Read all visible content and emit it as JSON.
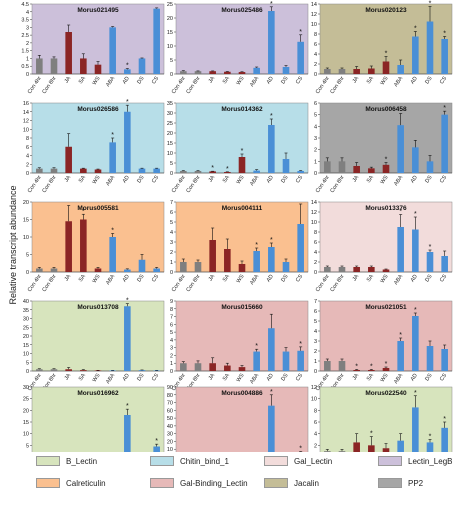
{
  "y_axis_label": "Relative transcript abundance",
  "x_categories": [
    "Con 4hr",
    "Con 8hr",
    "JA",
    "SA",
    "WS",
    "ABA",
    "AD",
    "DS",
    "CS"
  ],
  "bar_colors": [
    "#7f7f7f",
    "#7f7f7f",
    "#8b2525",
    "#8b2525",
    "#8b2525",
    "#4a8fd6",
    "#4a8fd6",
    "#4a8fd6",
    "#4a8fd6"
  ],
  "legend": [
    {
      "label": "B_Lectin",
      "color": "#d7e4bd"
    },
    {
      "label": "Chitin_bind_1",
      "color": "#b7dee8"
    },
    {
      "label": "Gal_Lectin",
      "color": "#f2dcdb"
    },
    {
      "label": "Lectin_LegB",
      "color": "#ccc0da"
    },
    {
      "label": "Calreticulin",
      "color": "#fac090"
    },
    {
      "label": "Gal-Binding_Lectin",
      "color": "#e6b9b8"
    },
    {
      "label": "Jacalin",
      "color": "#c4bd97"
    },
    {
      "label": "PP2",
      "color": "#a6a6a6"
    }
  ],
  "chart_data": [
    {
      "type": "bar",
      "title": "Morus021495",
      "bg": "#ccc0da",
      "ylim": [
        0,
        4.5
      ],
      "yticks": [
        0,
        0.5,
        1,
        1.5,
        2,
        2.5,
        3,
        3.5,
        4,
        4.5
      ],
      "values": [
        1.0,
        1.0,
        2.7,
        1.0,
        0.6,
        3.0,
        0.3,
        1.0,
        4.2
      ],
      "errors": [
        0.2,
        0.1,
        0.45,
        0.3,
        0.2,
        0.05,
        0.05,
        0.03,
        0.05
      ],
      "star": [
        false,
        false,
        false,
        false,
        false,
        false,
        true,
        false,
        false
      ]
    },
    {
      "type": "bar",
      "title": "Morus025486",
      "bg": "#ccc0da",
      "ylim": [
        0,
        25
      ],
      "yticks": [
        0,
        5,
        10,
        15,
        20,
        25
      ],
      "values": [
        1.0,
        1.0,
        1.0,
        0.8,
        0.7,
        2.2,
        22.5,
        2.5,
        11.5
      ],
      "errors": [
        0.2,
        0.1,
        0.1,
        0.1,
        0.1,
        0.3,
        1.5,
        0.5,
        2.5
      ],
      "star": [
        false,
        false,
        false,
        false,
        false,
        false,
        true,
        false,
        true
      ]
    },
    {
      "type": "bar",
      "title": "Morus020123",
      "bg": "#c4bd97",
      "ylim": [
        0,
        14
      ],
      "yticks": [
        0,
        2,
        4,
        6,
        8,
        10,
        12,
        14
      ],
      "values": [
        1.0,
        1.0,
        1.0,
        1.1,
        2.5,
        1.8,
        7.5,
        10.5,
        7.0
      ],
      "errors": [
        0.2,
        0.2,
        0.5,
        0.5,
        1.0,
        1.0,
        1.0,
        3.0,
        0.5
      ],
      "star": [
        false,
        false,
        false,
        false,
        true,
        false,
        true,
        true,
        true
      ]
    },
    {
      "type": "bar",
      "title": "Morus026586",
      "bg": "#b7dee8",
      "ylim": [
        0,
        16
      ],
      "yticks": [
        0,
        2,
        4,
        6,
        8,
        10,
        12,
        14,
        16
      ],
      "values": [
        1.0,
        1.0,
        6.0,
        1.0,
        0.8,
        7.0,
        14.0,
        1.0,
        1.0
      ],
      "errors": [
        0.2,
        0.2,
        3.0,
        0.1,
        0.1,
        1.0,
        1.5,
        0.1,
        0.1
      ],
      "star": [
        false,
        false,
        false,
        false,
        false,
        true,
        true,
        false,
        false
      ]
    },
    {
      "type": "bar",
      "title": "Morus014362",
      "bg": "#b7dee8",
      "ylim": [
        0,
        35
      ],
      "yticks": [
        0,
        5,
        10,
        15,
        20,
        25,
        30,
        35
      ],
      "values": [
        1.0,
        1.0,
        0.8,
        0.5,
        8.0,
        1.2,
        24.0,
        7.0,
        1.0
      ],
      "errors": [
        0.2,
        0.2,
        0.1,
        0.1,
        1.5,
        0.5,
        3.0,
        3.0,
        0.2
      ],
      "star": [
        false,
        false,
        true,
        true,
        true,
        false,
        true,
        false,
        false
      ]
    },
    {
      "type": "bar",
      "title": "Morus006458",
      "bg": "#a6a6a6",
      "ylim": [
        0,
        6
      ],
      "yticks": [
        0,
        1,
        2,
        3,
        4,
        5,
        6
      ],
      "values": [
        1.0,
        1.0,
        0.6,
        0.4,
        0.7,
        4.1,
        2.2,
        1.0,
        5.0
      ],
      "errors": [
        0.3,
        0.3,
        0.3,
        0.1,
        0.2,
        1.0,
        0.6,
        0.5,
        0.3
      ],
      "star": [
        false,
        false,
        false,
        false,
        true,
        false,
        false,
        false,
        true
      ]
    },
    {
      "type": "bar",
      "title": "Morus005581",
      "bg": "#fac090",
      "ylim": [
        0,
        20
      ],
      "yticks": [
        0,
        5,
        10,
        15,
        20
      ],
      "values": [
        1.0,
        1.0,
        14.5,
        15.0,
        1.0,
        10.0,
        0.7,
        3.5,
        1.0
      ],
      "errors": [
        0.3,
        0.3,
        4.5,
        1.5,
        0.3,
        1.0,
        0.2,
        1.5,
        0.3
      ],
      "star": [
        false,
        false,
        false,
        true,
        false,
        true,
        false,
        false,
        false
      ]
    },
    {
      "type": "bar",
      "title": "Morus004111",
      "bg": "#fac090",
      "ylim": [
        0,
        7
      ],
      "yticks": [
        0,
        1,
        2,
        3,
        4,
        5,
        6,
        7
      ],
      "values": [
        1.0,
        1.0,
        3.2,
        2.3,
        0.8,
        2.1,
        2.5,
        1.0,
        4.8
      ],
      "errors": [
        0.3,
        0.2,
        1.2,
        1.0,
        0.3,
        0.3,
        0.4,
        0.3,
        2.0
      ],
      "star": [
        false,
        false,
        false,
        false,
        false,
        true,
        true,
        false,
        false
      ]
    },
    {
      "type": "bar",
      "title": "Morus013376",
      "bg": "#f2dcdb",
      "ylim": [
        0,
        14
      ],
      "yticks": [
        0,
        2,
        4,
        6,
        8,
        10,
        12,
        14
      ],
      "values": [
        1.0,
        1.0,
        1.0,
        1.0,
        0.5,
        9.0,
        8.5,
        4.0,
        3.2
      ],
      "errors": [
        0.2,
        0.2,
        0.2,
        0.2,
        0.1,
        2.5,
        2.5,
        0.4,
        1.0
      ],
      "star": [
        false,
        false,
        false,
        false,
        false,
        true,
        true,
        true,
        false
      ]
    },
    {
      "type": "bar",
      "title": "Morus013708",
      "bg": "#d7e4bd",
      "ylim": [
        0,
        40
      ],
      "yticks": [
        0,
        5,
        10,
        15,
        20,
        25,
        30,
        35,
        40
      ],
      "values": [
        1.0,
        1.0,
        1.0,
        0.5,
        0.3,
        0.3,
        37.0,
        0.5,
        0.3
      ],
      "errors": [
        0.3,
        0.3,
        1.0,
        0.3,
        0.1,
        0.1,
        1.5,
        0.1,
        0.1
      ],
      "star": [
        false,
        false,
        false,
        false,
        false,
        false,
        true,
        false,
        false
      ]
    },
    {
      "type": "bar",
      "title": "Morus015660",
      "bg": "#e6b9b8",
      "ylim": [
        0,
        9
      ],
      "yticks": [
        0,
        1,
        2,
        3,
        4,
        5,
        6,
        7,
        8,
        9
      ],
      "values": [
        1.0,
        1.0,
        1.0,
        0.7,
        0.5,
        2.5,
        5.5,
        2.5,
        2.6
      ],
      "errors": [
        0.2,
        0.3,
        0.7,
        0.3,
        0.2,
        0.3,
        1.8,
        0.5,
        0.5
      ],
      "star": [
        false,
        false,
        false,
        false,
        false,
        true,
        false,
        false,
        true
      ]
    },
    {
      "type": "bar",
      "title": "Morus021051",
      "bg": "#e6b9b8",
      "ylim": [
        0,
        7
      ],
      "yticks": [
        0,
        1,
        2,
        3,
        4,
        5,
        6,
        7
      ],
      "values": [
        1.0,
        1.0,
        0.1,
        0.1,
        0.3,
        3.0,
        5.5,
        2.5,
        2.2
      ],
      "errors": [
        0.2,
        0.2,
        0.05,
        0.05,
        0.1,
        0.3,
        0.3,
        0.5,
        0.4
      ],
      "star": [
        false,
        false,
        true,
        true,
        true,
        true,
        true,
        false,
        false
      ]
    },
    {
      "type": "bar",
      "title": "Morus016962",
      "bg": "#d7e4bd",
      "ylim": [
        0,
        30
      ],
      "yticks": [
        0,
        5,
        10,
        15,
        20,
        25,
        30
      ],
      "values": [
        1.0,
        1.0,
        1.0,
        0.5,
        0.5,
        0.5,
        18.0,
        0.5,
        4.5
      ],
      "errors": [
        0.3,
        0.3,
        0.3,
        0.2,
        0.2,
        0.2,
        2.5,
        0.2,
        1.0
      ],
      "star": [
        false,
        false,
        false,
        false,
        false,
        false,
        true,
        false,
        true
      ]
    },
    {
      "type": "bar",
      "title": "Morus004886",
      "bg": "#e6b9b8",
      "ylim": [
        0,
        90
      ],
      "yticks": [
        0,
        10,
        20,
        30,
        40,
        50,
        60,
        70,
        80,
        90
      ],
      "values": [
        1.0,
        1.0,
        1.0,
        1.5,
        1.0,
        1.0,
        66.0,
        3.0,
        6.0
      ],
      "errors": [
        0.3,
        0.3,
        0.5,
        0.5,
        0.3,
        0.3,
        14.0,
        1.0,
        1.0
      ],
      "star": [
        false,
        false,
        false,
        false,
        false,
        false,
        true,
        false,
        true
      ]
    },
    {
      "type": "bar",
      "title": "Morus022540",
      "bg": "#d7e4bd",
      "ylim": [
        0,
        12
      ],
      "yticks": [
        0,
        2,
        4,
        6,
        8,
        10,
        12
      ],
      "values": [
        1.0,
        1.0,
        2.5,
        2.0,
        1.5,
        2.8,
        8.5,
        2.5,
        5.0
      ],
      "errors": [
        0.3,
        0.3,
        1.5,
        1.5,
        0.8,
        1.2,
        2.0,
        0.5,
        1.0
      ],
      "star": [
        false,
        false,
        false,
        true,
        false,
        false,
        true,
        true,
        true
      ]
    }
  ]
}
